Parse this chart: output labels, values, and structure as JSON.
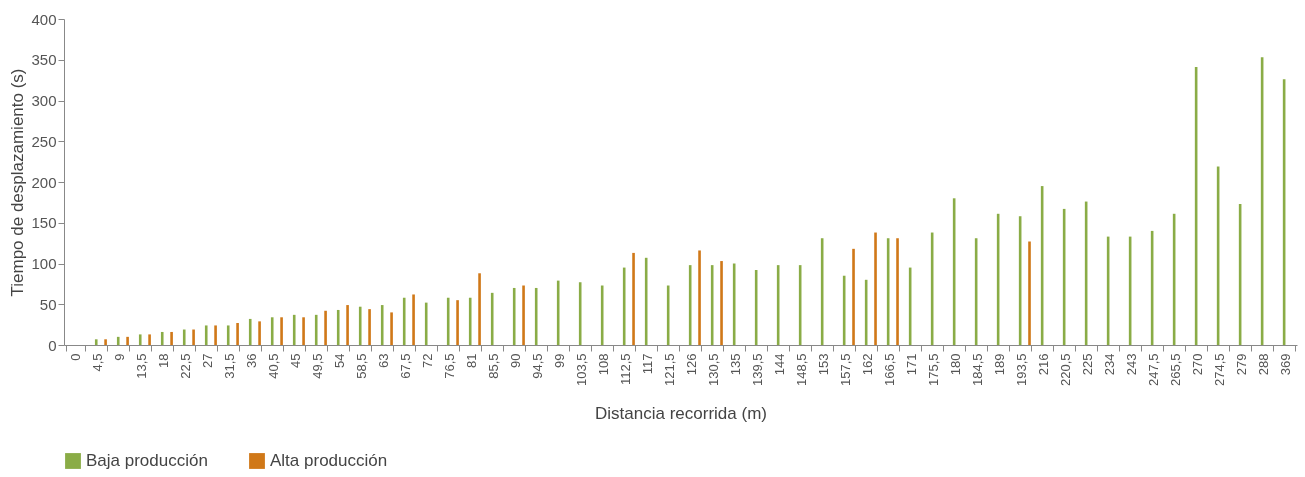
{
  "chart_data": {
    "type": "bar",
    "xlabel": "Distancia recorrida (m)",
    "ylabel": "Tiempo de desplazamiento (s)",
    "categories": [
      "0",
      "4,5",
      "9",
      "13,5",
      "18",
      "22,5",
      "27",
      "31,5",
      "36",
      "40,5",
      "45",
      "49,5",
      "54",
      "58,5",
      "63",
      "67,5",
      "72",
      "76,5",
      "81",
      "85,5",
      "90",
      "94,5",
      "99",
      "103,5",
      "108",
      "112,5",
      "117",
      "121,5",
      "126",
      "130,5",
      "135",
      "139,5",
      "144",
      "148,5",
      "153",
      "157,5",
      "162",
      "166,5",
      "171",
      "175,5",
      "180",
      "184,5",
      "189",
      "193,5",
      "216",
      "220,5",
      "225",
      "234",
      "243",
      "247,5",
      "265,5",
      "270",
      "274,5",
      "279",
      "288",
      "369"
    ],
    "series": [
      {
        "name": "Baja producción",
        "color": "#8aac46",
        "values": [
          null,
          7,
          10,
          13,
          16,
          19,
          24,
          24,
          32,
          34,
          37,
          37,
          43,
          47,
          49,
          58,
          52,
          58,
          58,
          64,
          70,
          70,
          79,
          77,
          73,
          95,
          107,
          73,
          98,
          98,
          100,
          92,
          98,
          98,
          131,
          85,
          80,
          131,
          95,
          138,
          180,
          131,
          161,
          158,
          195,
          167,
          176,
          133,
          133,
          140,
          161,
          341,
          219,
          173,
          353,
          326
        ]
      },
      {
        "name": "Alta producción",
        "color": "#d07818",
        "values": [
          null,
          7,
          10,
          13,
          16,
          19,
          24,
          27,
          29,
          34,
          34,
          42,
          49,
          44,
          40,
          62,
          null,
          55,
          88,
          null,
          73,
          null,
          null,
          null,
          null,
          113,
          null,
          null,
          116,
          103,
          null,
          null,
          null,
          null,
          null,
          118,
          138,
          131,
          null,
          null,
          null,
          null,
          null,
          127,
          null,
          null,
          null,
          null,
          null,
          null,
          null,
          null,
          null,
          null,
          null,
          null
        ]
      }
    ],
    "ylim": [
      0,
      400
    ],
    "yticks": [
      0,
      50,
      100,
      150,
      200,
      250,
      300,
      350,
      400
    ],
    "grid": false,
    "legend": "bottom"
  }
}
